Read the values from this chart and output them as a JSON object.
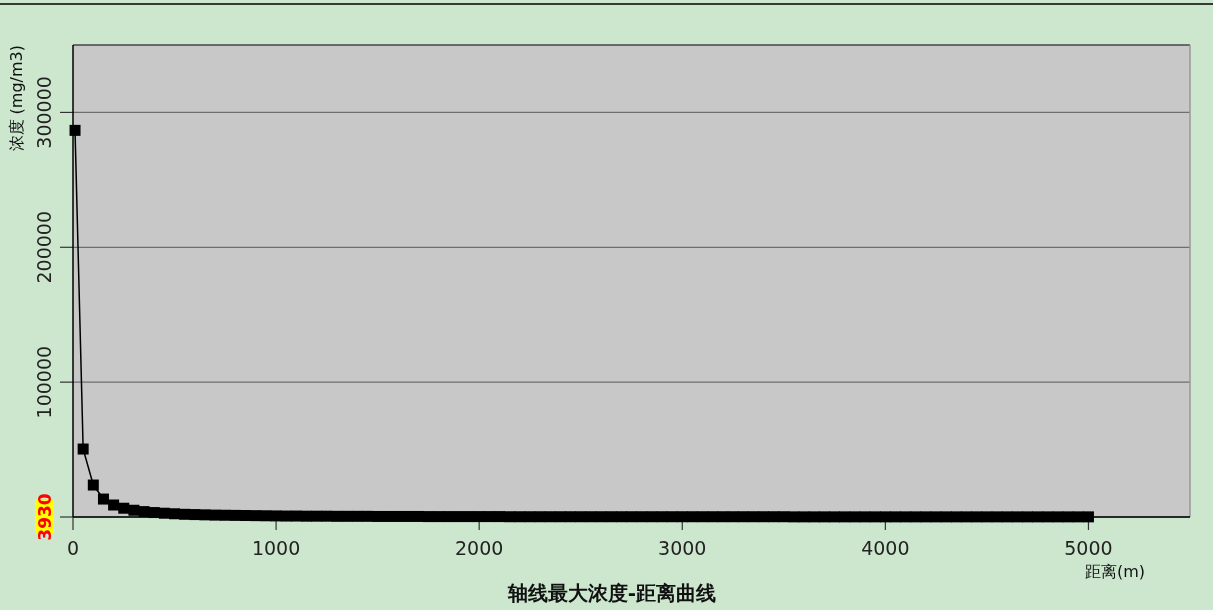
{
  "chart_data": {
    "type": "line",
    "title": "轴线最大浓度-距离曲线",
    "xlabel": "距离(m)",
    "ylabel": "浓度 (mg/m3)",
    "xlim": [
      0,
      5500
    ],
    "xticks": [
      0,
      1000,
      2000,
      3000,
      4000,
      5000
    ],
    "ylim": [
      0,
      350000
    ],
    "yticks": [
      {
        "value": 0,
        "label": null
      },
      100000,
      200000,
      300000
    ],
    "grid": "y",
    "marker": "square",
    "line_style": "solid",
    "annotations": [
      "3930"
    ],
    "series": [
      {
        "color": "#000000",
        "x": [
          10,
          50,
          100,
          150,
          200,
          250,
          300,
          350,
          400,
          450,
          500,
          550,
          600,
          650,
          700,
          750,
          800,
          850,
          900,
          950,
          1000,
          1050,
          1100,
          1150,
          1200,
          1250,
          1300,
          1350,
          1400,
          1450,
          1500,
          1550,
          1600,
          1650,
          1700,
          1750,
          1800,
          1850,
          1900,
          1950,
          2000,
          2050,
          2100,
          2150,
          2200,
          2250,
          2300,
          2350,
          2400,
          2450,
          2500,
          2550,
          2600,
          2650,
          2700,
          2750,
          2800,
          2850,
          2900,
          2950,
          3000,
          3050,
          3100,
          3150,
          3200,
          3250,
          3300,
          3350,
          3400,
          3450,
          3500,
          3550,
          3600,
          3650,
          3700,
          3750,
          3800,
          3850,
          3900,
          3950,
          4000,
          4050,
          4100,
          4150,
          4200,
          4250,
          4300,
          4350,
          4400,
          4450,
          4500,
          4550,
          4600,
          4650,
          4700,
          4750,
          4800,
          4850,
          4900,
          4950,
          5000
        ],
        "values": [
          286700,
          50400,
          23700,
          13300,
          8900,
          6500,
          5000,
          4000,
          3300,
          2800,
          2400,
          2000,
          1800,
          1600,
          1400,
          1300,
          1200,
          1100,
          1000,
          900,
          800,
          700,
          700,
          600,
          600,
          600,
          500,
          500,
          500,
          500,
          400,
          400,
          400,
          400,
          400,
          300,
          300,
          300,
          300,
          300,
          300,
          300,
          300,
          200,
          200,
          200,
          200,
          200,
          200,
          200,
          200,
          200,
          200,
          200,
          200,
          200,
          200,
          200,
          200,
          200,
          200,
          200,
          200,
          200,
          200,
          200,
          200,
          200,
          200,
          200,
          200,
          100,
          100,
          100,
          100,
          100,
          100,
          100,
          100,
          100,
          100,
          100,
          100,
          100,
          100,
          100,
          100,
          100,
          100,
          100,
          100,
          100,
          100,
          100,
          100,
          100,
          100,
          100,
          100,
          100,
          100
        ]
      }
    ]
  }
}
